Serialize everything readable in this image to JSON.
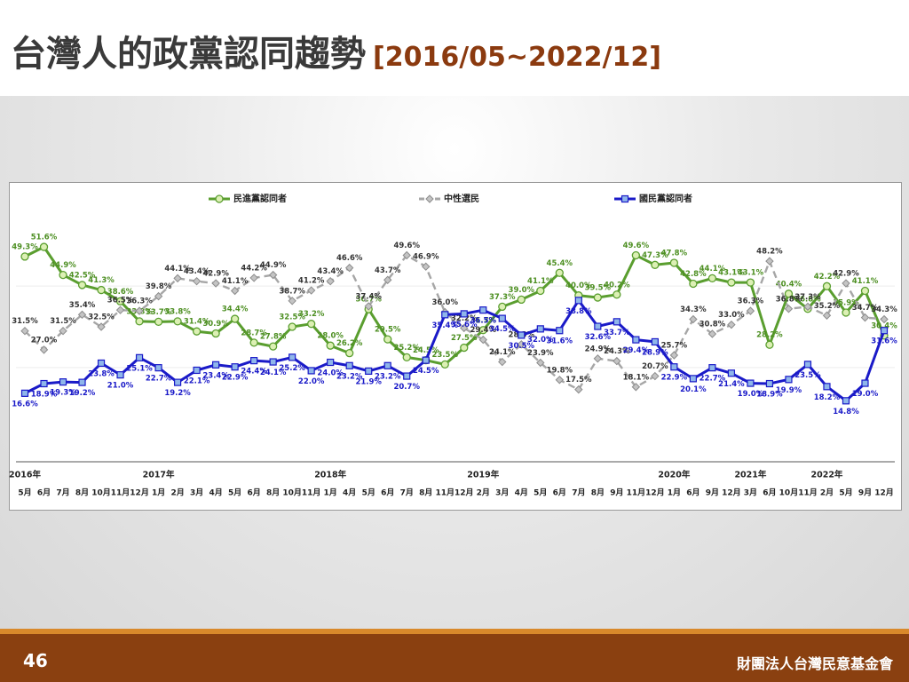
{
  "header": {
    "title": "台灣人的政黨認同趨勢",
    "subtitle": "[2016/05~2022/12]"
  },
  "chart_data": {
    "type": "line",
    "categories": [
      "5月",
      "6月",
      "7月",
      "8月",
      "10月",
      "11月",
      "12月",
      "1月",
      "2月",
      "3月",
      "4月",
      "5月",
      "6月",
      "8月",
      "10月",
      "11月",
      "1月",
      "4月",
      "5月",
      "6月",
      "7月",
      "8月",
      "11月",
      "12月",
      "2月",
      "3月",
      "4月",
      "5月",
      "6月",
      "7月",
      "8月",
      "9月",
      "11月",
      "12月",
      "1月",
      "6月",
      "9月",
      "12月",
      "3月",
      "6月",
      "10月",
      "11月",
      "2月",
      "5月",
      "9月",
      "12月"
    ],
    "category_groups": [
      {
        "label": "2016年",
        "start": 0
      },
      {
        "label": "2017年",
        "start": 7
      },
      {
        "label": "2018年",
        "start": 16
      },
      {
        "label": "2019年",
        "start": 24
      },
      {
        "label": "2020年",
        "start": 34
      },
      {
        "label": "2021年",
        "start": 38
      },
      {
        "label": "2022年",
        "start": 42
      }
    ],
    "ylim": [
      0,
      65
    ],
    "series": [
      {
        "name": "民進黨認同者",
        "color": "#5a9e2f",
        "marker": "circle",
        "dashed": false,
        "values": [
          49.3,
          51.6,
          44.9,
          42.5,
          41.3,
          38.6,
          33.8,
          33.7,
          33.8,
          31.4,
          30.9,
          34.4,
          28.7,
          27.8,
          32.5,
          33.2,
          28.0,
          26.2,
          36.7,
          29.5,
          25.2,
          24.5,
          23.5,
          27.5,
          31.7,
          37.3,
          39.0,
          41.1,
          45.4,
          40.0,
          39.5,
          40.2,
          49.6,
          47.3,
          47.8,
          42.8,
          44.1,
          43.1,
          43.1,
          28.2,
          40.4,
          36.8,
          42.2,
          35.9,
          41.1,
          30.4
        ],
        "value_labels": [
          "49.3%",
          "51.6%",
          "44.9%",
          "42.5%",
          "41.3%",
          "38.6%",
          "33.8%",
          "33.7%",
          "33.8%",
          "31.4%",
          "30.9%",
          "34.4%",
          "28.7%",
          "27.8%",
          "32.5%",
          "33.2%",
          "28.0%",
          "26.2%",
          "36.7%",
          "29.5%",
          "25.2%",
          "24.5%",
          "23.5%",
          "27.5%",
          "31.7%",
          "37.3%",
          "39.0%",
          "41.1%",
          "45.4%",
          "40.0%",
          "39.5%",
          "40.2%",
          "49.6%",
          "47.3%",
          "47.8%",
          "42.8%",
          "44.1%",
          "43.1%",
          "43.1%",
          "28.2%",
          "40.4%",
          "36.8%",
          "42.2%",
          "35.9%",
          "41.1%",
          "30.4%"
        ]
      },
      {
        "name": "中性選民",
        "color": "#a6a6a6",
        "marker": "diamond",
        "dashed": true,
        "values": [
          31.5,
          27.0,
          31.5,
          35.4,
          32.5,
          36.5,
          36.3,
          39.8,
          44.1,
          43.4,
          42.9,
          41.1,
          44.2,
          44.9,
          38.7,
          41.2,
          43.4,
          46.6,
          37.4,
          43.7,
          49.6,
          46.9,
          36.0,
          32.2,
          29.4,
          24.1,
          28.3,
          23.9,
          19.8,
          17.5,
          24.9,
          24.3,
          18.1,
          20.7,
          25.7,
          34.3,
          30.8,
          33.0,
          36.3,
          48.2,
          36.8,
          37.3,
          35.2,
          42.9,
          34.7,
          34.3
        ],
        "value_labels": [
          "31.5%",
          "27.0%",
          "31.5%",
          "35.4%",
          "32.5%",
          "36.5%",
          "36.3%",
          "39.8%",
          "44.1%",
          "43.4%",
          "42.9%",
          "41.1%",
          "44.2%",
          "44.9%",
          "38.7%",
          "41.2%",
          "43.4%",
          "46.6%",
          "37.4%",
          "43.7%",
          "49.6%",
          "46.9%",
          "36.0%",
          "32.2%",
          "29.4%",
          "24.1%",
          "28.3%",
          "23.9%",
          "19.8%",
          "17.5%",
          "24.9%",
          "24.3%",
          "18.1%",
          "20.7%",
          "25.7%",
          "34.3%",
          "30.8%",
          "33.0%",
          "36.3%",
          "48.2%",
          "36.8%",
          "37.3%",
          "35.2%",
          "42.9%",
          "34.7%",
          "34.3%"
        ]
      },
      {
        "name": "國民黨認同者",
        "color": "#1a1ac8",
        "marker": "square",
        "dashed": false,
        "values": [
          16.6,
          18.9,
          19.3,
          19.2,
          23.8,
          21.0,
          25.1,
          22.7,
          19.2,
          22.1,
          23.4,
          22.9,
          24.4,
          24.1,
          25.2,
          22.0,
          24.0,
          23.2,
          21.9,
          23.2,
          20.7,
          24.5,
          35.4,
          35.6,
          36.5,
          34.5,
          30.5,
          32.0,
          31.6,
          38.8,
          32.6,
          33.7,
          29.4,
          28.9,
          22.9,
          20.1,
          22.7,
          21.4,
          19.0,
          18.9,
          19.9,
          23.5,
          18.2,
          14.8,
          19.0,
          31.6
        ],
        "value_labels": [
          "16.6%",
          "18.9%",
          "19.3%",
          "19.2%",
          "23.8%",
          "21.0%",
          "25.1%",
          "22.7%",
          "19.2%",
          "22.1%",
          "23.4%",
          "22.9%",
          "24.4%",
          "24.1%",
          "25.2%",
          "22.0%",
          "24.0%",
          "23.2%",
          "21.9%",
          "23.2%",
          "20.7%",
          "24.5%",
          "35.4%",
          "35.6%",
          "36.5%",
          "34.5%",
          "30.5%",
          "32.0%",
          "31.6%",
          "38.8%",
          "32.6%",
          "33.7%",
          "29.4%",
          "28.9%",
          "22.9%",
          "20.1%",
          "22.7%",
          "21.4%",
          "19.0%",
          "18.9%",
          "19.9%",
          "23.5%",
          "18.2%",
          "14.8%",
          "19.0%",
          "31.6%"
        ]
      }
    ]
  },
  "footer": {
    "page_number": "46",
    "organization": "財團法人台灣民意基金會"
  }
}
